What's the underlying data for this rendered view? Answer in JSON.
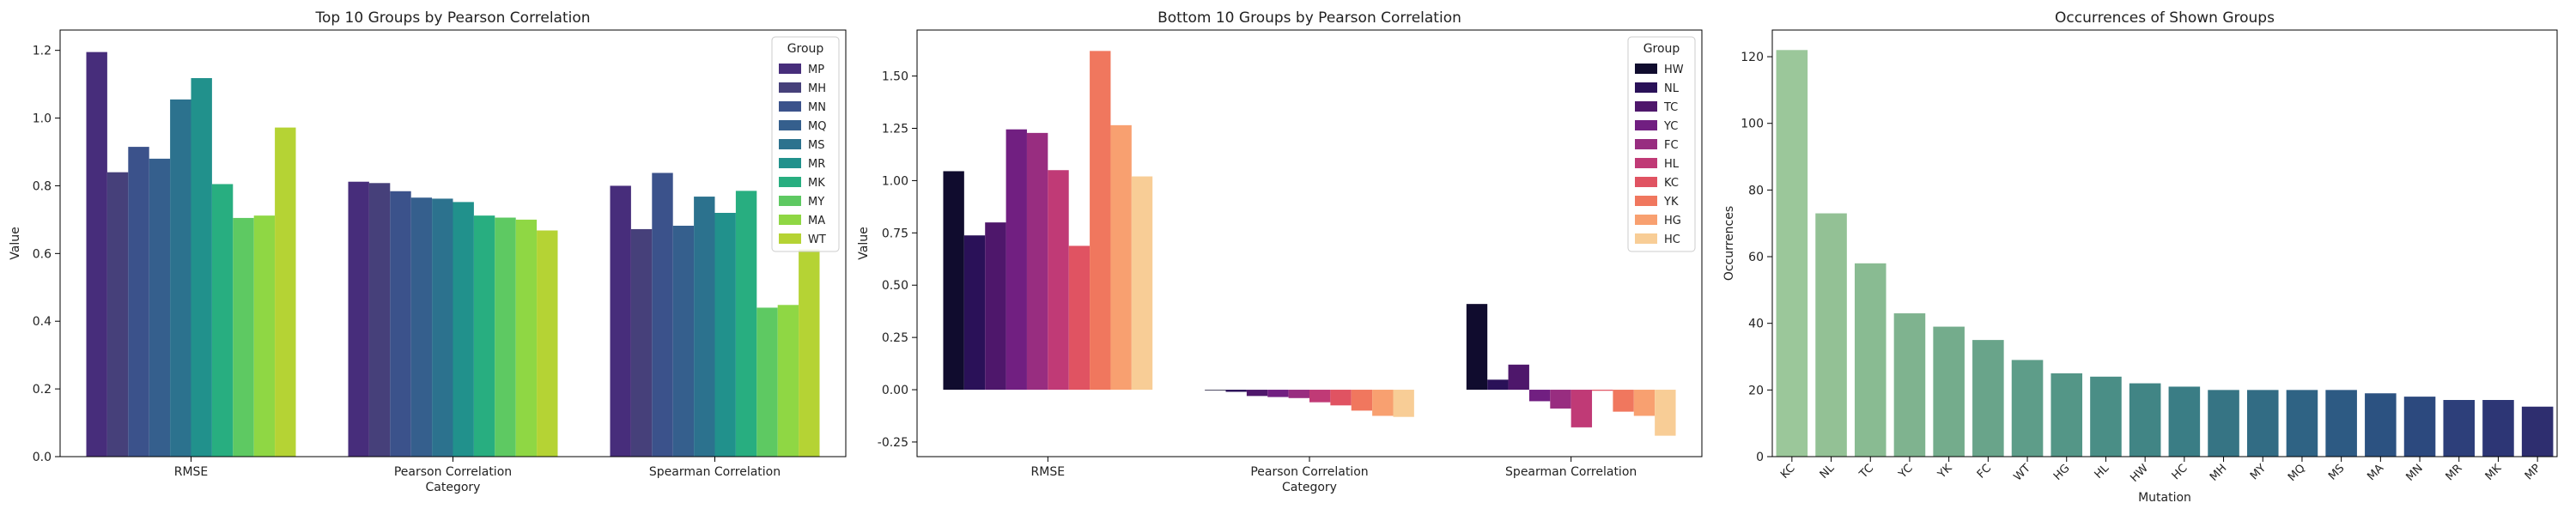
{
  "chart_data": [
    {
      "type": "bar",
      "title": "Top 10 Groups by Pearson Correlation",
      "xlabel": "Category",
      "ylabel": "Value",
      "ylim": [
        0,
        1.26
      ],
      "yticks": [
        0.0,
        0.2,
        0.4,
        0.6,
        0.8,
        1.0,
        1.2
      ],
      "categories": [
        "RMSE",
        "Pearson Correlation",
        "Spearman Correlation"
      ],
      "legend_title": "Group",
      "legend_position": "top-right",
      "series": [
        {
          "name": "MP",
          "color": "#472d7b",
          "values": [
            1.195,
            0.812,
            0.8
          ]
        },
        {
          "name": "MH",
          "color": "#46407a",
          "values": [
            0.84,
            0.808,
            0.672
          ]
        },
        {
          "name": "MN",
          "color": "#3b528b",
          "values": [
            0.915,
            0.784,
            0.838
          ]
        },
        {
          "name": "MQ",
          "color": "#355f8d",
          "values": [
            0.88,
            0.765,
            0.682
          ]
        },
        {
          "name": "MS",
          "color": "#2c728e",
          "values": [
            1.055,
            0.762,
            0.768
          ]
        },
        {
          "name": "MR",
          "color": "#21918c",
          "values": [
            1.118,
            0.752,
            0.72
          ]
        },
        {
          "name": "MK",
          "color": "#28ae80",
          "values": [
            0.805,
            0.712,
            0.785
          ]
        },
        {
          "name": "MY",
          "color": "#5ec962",
          "values": [
            0.705,
            0.706,
            0.44
          ]
        },
        {
          "name": "MA",
          "color": "#8fd744",
          "values": [
            0.712,
            0.7,
            0.448
          ]
        },
        {
          "name": "WT",
          "color": "#b5d334",
          "values": [
            0.972,
            0.668,
            0.612
          ]
        }
      ]
    },
    {
      "type": "bar",
      "title": "Bottom 10 Groups by Pearson Correlation",
      "xlabel": "Category",
      "ylabel": "Value",
      "ylim": [
        -0.32,
        1.72
      ],
      "yticks": [
        -0.25,
        0.0,
        0.25,
        0.5,
        0.75,
        1.0,
        1.25,
        1.5
      ],
      "categories": [
        "RMSE",
        "Pearson Correlation",
        "Spearman Correlation"
      ],
      "legend_title": "Group",
      "legend_position": "top-right",
      "series": [
        {
          "name": "HW",
          "color": "#100c2e",
          "values": [
            1.045,
            -0.003,
            0.41
          ]
        },
        {
          "name": "NL",
          "color": "#2a1158",
          "values": [
            0.738,
            -0.01,
            0.048
          ]
        },
        {
          "name": "TC",
          "color": "#4e176b",
          "values": [
            0.8,
            -0.03,
            0.12
          ]
        },
        {
          "name": "YC",
          "color": "#711f81",
          "values": [
            1.245,
            -0.035,
            -0.055
          ]
        },
        {
          "name": "FC",
          "color": "#982d80",
          "values": [
            1.228,
            -0.04,
            -0.09
          ]
        },
        {
          "name": "HL",
          "color": "#c03a76",
          "values": [
            1.05,
            -0.06,
            -0.18
          ]
        },
        {
          "name": "KC",
          "color": "#e05362",
          "values": [
            0.688,
            -0.075,
            -0.005
          ]
        },
        {
          "name": "YK",
          "color": "#f0775e",
          "values": [
            1.62,
            -0.1,
            -0.105
          ]
        },
        {
          "name": "HG",
          "color": "#f8a070",
          "values": [
            1.265,
            -0.125,
            -0.125
          ]
        },
        {
          "name": "HC",
          "color": "#f8cd96",
          "values": [
            1.02,
            -0.13,
            -0.22
          ]
        }
      ]
    },
    {
      "type": "bar",
      "title": "Occurrences of Shown Groups",
      "xlabel": "Mutation",
      "ylabel": "Occurrences",
      "ylim": [
        0,
        128
      ],
      "yticks": [
        0,
        20,
        40,
        60,
        80,
        100,
        120
      ],
      "categories": [
        "KC",
        "NL",
        "TC",
        "YC",
        "YK",
        "FC",
        "WT",
        "HG",
        "HL",
        "HW",
        "HC",
        "MH",
        "MY",
        "MQ",
        "MS",
        "MA",
        "MN",
        "MR",
        "MK",
        "MP"
      ],
      "values": [
        122,
        73,
        58,
        43,
        39,
        35,
        29,
        25,
        24,
        22,
        21,
        20,
        20,
        20,
        20,
        19,
        18,
        17,
        17,
        15
      ],
      "colors": [
        "#9bc79a",
        "#93c195",
        "#89bb92",
        "#7fb38f",
        "#74ac8c",
        "#69a48a",
        "#5e9d89",
        "#549687",
        "#4a8e86",
        "#418585",
        "#3a7d85",
        "#367484",
        "#326c84",
        "#2f6384",
        "#2d5a83",
        "#2c5281",
        "#2c497e",
        "#2d3f7a",
        "#2d3675",
        "#2e2e6f"
      ]
    }
  ]
}
